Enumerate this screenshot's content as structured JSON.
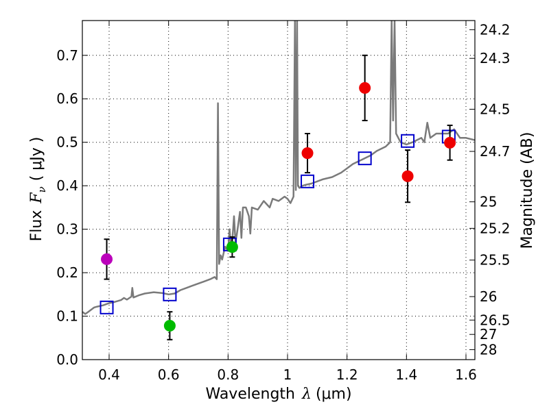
{
  "chart_data": {
    "type": "scatter",
    "xlabel_prefix": "Wavelength",
    "xlabel_lambda": "λ",
    "xlabel_unit": "(μm)",
    "ylabel_prefix": "Flux",
    "ylabel_F": "F",
    "ylabel_nu": "ν",
    "ylabel_unit": "( μJy )",
    "ylabel_right": "Magnitude (AB)",
    "xlim": [
      0.31,
      1.63
    ],
    "ylim": [
      0.0,
      0.78
    ],
    "xticks": [
      0.4,
      0.6,
      0.8,
      1.0,
      1.2,
      1.4,
      1.6
    ],
    "xtick_labels": [
      "0.4",
      "0.6",
      "0.8",
      "1",
      "1.2",
      "1.4",
      "1.6"
    ],
    "yticks": [
      0.0,
      0.1,
      0.2,
      0.3,
      0.4,
      0.5,
      0.6,
      0.7
    ],
    "ytick_labels": [
      "0.0",
      "0.1",
      "0.2",
      "0.3",
      "0.4",
      "0.5",
      "0.6",
      "0.7"
    ],
    "right_ticks": [
      {
        "label": "24.2",
        "flux": 0.759
      },
      {
        "label": "24.3",
        "flux": 0.693
      },
      {
        "label": "24.5",
        "flux": 0.576
      },
      {
        "label": "24.7",
        "flux": 0.479
      },
      {
        "label": "25",
        "flux": 0.363
      },
      {
        "label": "25.2",
        "flux": 0.302
      },
      {
        "label": "25.5",
        "flux": 0.229
      },
      {
        "label": "26",
        "flux": 0.145
      },
      {
        "label": "26.5",
        "flux": 0.091
      },
      {
        "label": "27",
        "flux": 0.058
      },
      {
        "label": "28",
        "flux": 0.023
      }
    ],
    "colors": {
      "spectrum": "#7a7a7a",
      "model_squares": "#0000cc",
      "errorbar": "#000000",
      "magenta": "#bb00bb",
      "green": "#00bb00",
      "red": "#ee0000"
    },
    "spectrum": [
      [
        0.31,
        0.11
      ],
      [
        0.32,
        0.105
      ],
      [
        0.33,
        0.11
      ],
      [
        0.34,
        0.115
      ],
      [
        0.35,
        0.12
      ],
      [
        0.36,
        0.122
      ],
      [
        0.38,
        0.125
      ],
      [
        0.4,
        0.13
      ],
      [
        0.42,
        0.133
      ],
      [
        0.44,
        0.137
      ],
      [
        0.45,
        0.142
      ],
      [
        0.46,
        0.138
      ],
      [
        0.475,
        0.145
      ],
      [
        0.478,
        0.165
      ],
      [
        0.482,
        0.143
      ],
      [
        0.5,
        0.148
      ],
      [
        0.52,
        0.152
      ],
      [
        0.55,
        0.155
      ],
      [
        0.58,
        0.153
      ],
      [
        0.6,
        0.15
      ],
      [
        0.62,
        0.152
      ],
      [
        0.64,
        0.16
      ],
      [
        0.66,
        0.165
      ],
      [
        0.68,
        0.17
      ],
      [
        0.7,
        0.175
      ],
      [
        0.72,
        0.18
      ],
      [
        0.74,
        0.185
      ],
      [
        0.755,
        0.19
      ],
      [
        0.762,
        0.185
      ],
      [
        0.766,
        0.59
      ],
      [
        0.77,
        0.22
      ],
      [
        0.775,
        0.24
      ],
      [
        0.78,
        0.23
      ],
      [
        0.79,
        0.26
      ],
      [
        0.8,
        0.25
      ],
      [
        0.805,
        0.3
      ],
      [
        0.81,
        0.26
      ],
      [
        0.815,
        0.28
      ],
      [
        0.82,
        0.33
      ],
      [
        0.825,
        0.27
      ],
      [
        0.83,
        0.29
      ],
      [
        0.84,
        0.34
      ],
      [
        0.845,
        0.28
      ],
      [
        0.85,
        0.35
      ],
      [
        0.86,
        0.35
      ],
      [
        0.87,
        0.33
      ],
      [
        0.875,
        0.29
      ],
      [
        0.88,
        0.35
      ],
      [
        0.9,
        0.345
      ],
      [
        0.92,
        0.365
      ],
      [
        0.94,
        0.35
      ],
      [
        0.95,
        0.37
      ],
      [
        0.97,
        0.365
      ],
      [
        0.99,
        0.375
      ],
      [
        1.0,
        0.37
      ],
      [
        1.01,
        0.36
      ],
      [
        1.02,
        0.375
      ],
      [
        1.025,
        0.78
      ],
      [
        1.028,
        0.39
      ],
      [
        1.032,
        0.78
      ],
      [
        1.035,
        0.4
      ],
      [
        1.04,
        0.395
      ],
      [
        1.05,
        0.4
      ],
      [
        1.06,
        0.402
      ],
      [
        1.08,
        0.405
      ],
      [
        1.1,
        0.41
      ],
      [
        1.12,
        0.415
      ],
      [
        1.15,
        0.42
      ],
      [
        1.18,
        0.43
      ],
      [
        1.2,
        0.44
      ],
      [
        1.22,
        0.45
      ],
      [
        1.25,
        0.46
      ],
      [
        1.28,
        0.47
      ],
      [
        1.3,
        0.48
      ],
      [
        1.33,
        0.49
      ],
      [
        1.345,
        0.5
      ],
      [
        1.35,
        0.78
      ],
      [
        1.355,
        0.55
      ],
      [
        1.36,
        0.78
      ],
      [
        1.365,
        0.52
      ],
      [
        1.38,
        0.5
      ],
      [
        1.4,
        0.495
      ],
      [
        1.42,
        0.5
      ],
      [
        1.45,
        0.51
      ],
      [
        1.46,
        0.5
      ],
      [
        1.47,
        0.545
      ],
      [
        1.48,
        0.51
      ],
      [
        1.5,
        0.52
      ],
      [
        1.52,
        0.52
      ],
      [
        1.54,
        0.52
      ],
      [
        1.56,
        0.53
      ],
      [
        1.58,
        0.51
      ],
      [
        1.6,
        0.51
      ],
      [
        1.63,
        0.505
      ]
    ],
    "model_squares": [
      {
        "x": 0.392,
        "y": 0.12
      },
      {
        "x": 0.604,
        "y": 0.15
      },
      {
        "x": 0.806,
        "y": 0.265
      },
      {
        "x": 1.067,
        "y": 0.41
      },
      {
        "x": 1.26,
        "y": 0.463
      },
      {
        "x": 1.404,
        "y": 0.503
      },
      {
        "x": 1.542,
        "y": 0.513
      }
    ],
    "points": [
      {
        "x": 0.392,
        "y": 0.231,
        "err": 0.046,
        "color_key": "magenta"
      },
      {
        "x": 0.604,
        "y": 0.078,
        "err": 0.032,
        "color_key": "green"
      },
      {
        "x": 0.814,
        "y": 0.259,
        "err": 0.023,
        "color_key": "green"
      },
      {
        "x": 1.067,
        "y": 0.475,
        "err": 0.045,
        "color_key": "red"
      },
      {
        "x": 1.26,
        "y": 0.625,
        "err": 0.075,
        "color_key": "red"
      },
      {
        "x": 1.404,
        "y": 0.422,
        "err": 0.06,
        "color_key": "red"
      },
      {
        "x": 1.546,
        "y": 0.499,
        "err": 0.04,
        "color_key": "red"
      }
    ]
  }
}
